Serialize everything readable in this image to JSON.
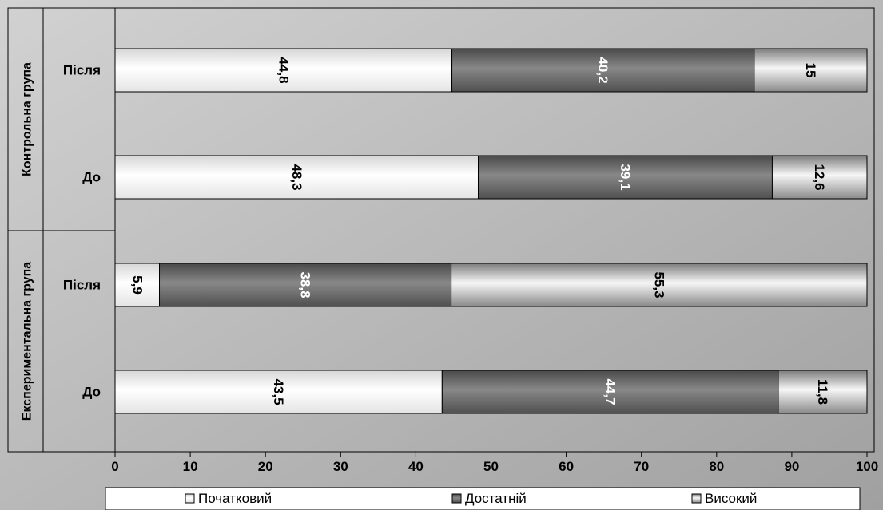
{
  "chart_data": {
    "type": "bar",
    "orientation": "horizontal",
    "stacked": true,
    "xlim": [
      0,
      100
    ],
    "x_ticks": [
      "0",
      "10",
      "20",
      "30",
      "40",
      "50",
      "60",
      "70",
      "80",
      "90",
      "100"
    ],
    "grid": false,
    "legend_position": "bottom",
    "groups": [
      {
        "name": "Контрольна група",
        "categories": [
          {
            "label": "Після",
            "values": [
              44.8,
              40.2,
              15
            ],
            "labels": [
              "44,8",
              "40,2",
              "15"
            ]
          },
          {
            "label": "До",
            "values": [
              48.3,
              39.1,
              12.6
            ],
            "labels": [
              "48,3",
              "39,1",
              "12,6"
            ]
          }
        ]
      },
      {
        "name": "Експериментальна група",
        "categories": [
          {
            "label": "Після",
            "values": [
              5.9,
              38.8,
              55.3
            ],
            "labels": [
              "5,9",
              "38,8",
              "55,3"
            ]
          },
          {
            "label": "До",
            "values": [
              43.5,
              44.7,
              11.8
            ],
            "labels": [
              "43,5",
              "44,7",
              "11,8"
            ]
          }
        ]
      }
    ],
    "series": [
      {
        "name": "Початковий",
        "fill": "white"
      },
      {
        "name": "Достатній",
        "fill": "dark-gray"
      },
      {
        "name": "Високий",
        "fill": "gray"
      }
    ]
  },
  "colors": {
    "background_light": "#c8c8c8",
    "background_dark": "#a4a4a4",
    "series_initial": "#ffffff",
    "series_sufficient_light": "#7a7a7a",
    "series_sufficient_dark": "#555555",
    "series_high_light": "#f4f4f4",
    "series_high_dark": "#8a8a8a"
  }
}
